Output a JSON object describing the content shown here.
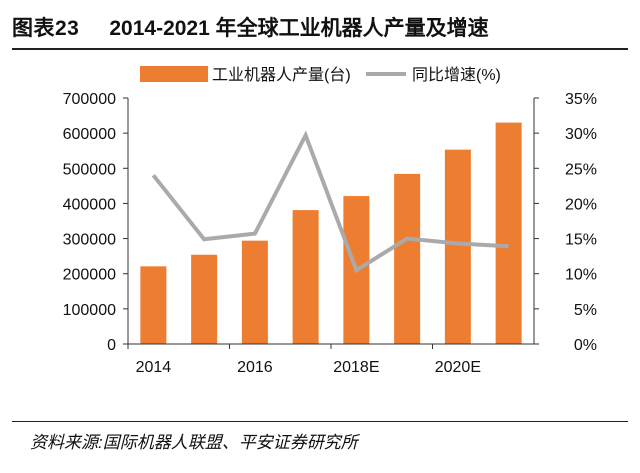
{
  "header": {
    "figure_label": "图表23",
    "title": "2014-2021 年全球工业机器人产量及增速"
  },
  "footer": {
    "source": "资料来源:国际机器人联盟、平安证券研究所"
  },
  "chart_data": {
    "type": "bar",
    "title": "2014-2021 年全球工业机器人产量及增速",
    "categories": [
      "2014",
      "2015",
      "2016",
      "2017",
      "2018E",
      "2019E",
      "2020E",
      "2021E"
    ],
    "x_tick_labels": [
      "2014",
      "2016",
      "2018E",
      "2020E"
    ],
    "series": [
      {
        "name": "工业机器人产量(台)",
        "type": "bar",
        "axis": "left",
        "color": "#ED7D31",
        "values": [
          221000,
          254000,
          294000,
          381000,
          421000,
          484000,
          553000,
          630000
        ]
      },
      {
        "name": "同比增速(%)",
        "type": "line",
        "axis": "right",
        "color": "#AAAAAA",
        "values": [
          24.0,
          14.9,
          15.7,
          29.7,
          10.5,
          15.0,
          14.3,
          13.9
        ]
      }
    ],
    "y_left": {
      "min": 0,
      "max": 700000,
      "step": 100000,
      "ticks": [
        "0",
        "100000",
        "200000",
        "300000",
        "400000",
        "500000",
        "600000",
        "700000"
      ]
    },
    "y_right": {
      "min": 0,
      "max": 35,
      "step": 5,
      "ticks": [
        "0%",
        "5%",
        "10%",
        "15%",
        "20%",
        "25%",
        "30%",
        "35%"
      ]
    },
    "legend_position": "top",
    "grid": false
  }
}
